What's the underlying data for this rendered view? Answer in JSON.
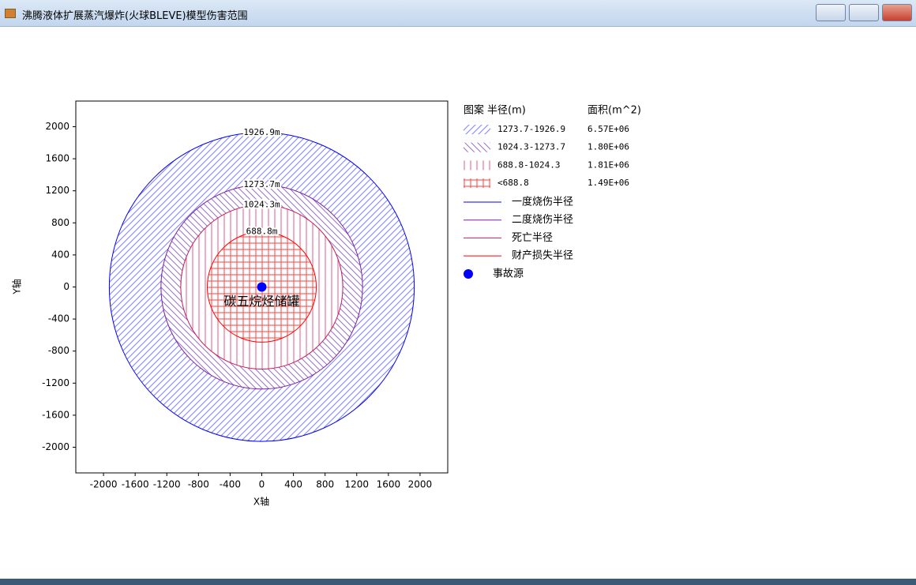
{
  "window": {
    "title": "沸腾液体扩展蒸汽爆炸(火球BLEVE)模型伤害范围"
  },
  "chart_data": {
    "type": "radius",
    "xlabel": "X轴",
    "ylabel": "Y轴",
    "xlim": [
      -2350,
      2350
    ],
    "xticks": [
      -2000,
      -1600,
      -1200,
      -800,
      -400,
      0,
      400,
      800,
      1200,
      1600,
      2000
    ],
    "ylim": [
      -2320,
      2320
    ],
    "yticks": [
      -2000,
      -1600,
      -1200,
      -800,
      -400,
      0,
      400,
      800,
      1200,
      1600,
      2000
    ],
    "series": [
      {
        "name": "一度烧伤半径",
        "color": "#0000ff",
        "values": [
          1926.9
        ],
        "value_labels": [
          "1926.9m"
        ]
      },
      {
        "name": "二度烧伤半径",
        "color": "#7a1fa2",
        "values": [
          1273.7
        ],
        "value_labels": [
          "1273.7m"
        ]
      },
      {
        "name": "死亡半径",
        "color": "#c41e5a",
        "values": [
          1024.3
        ],
        "value_labels": [
          "1024.3m"
        ]
      },
      {
        "name": "财产损失半径",
        "color": "#ff0000",
        "values": [
          688.8
        ],
        "value_labels": [
          "688.8m"
        ]
      }
    ],
    "source": {
      "name": "事故源",
      "label": "碳五烷烃储罐",
      "color": "#0000ff",
      "x": [
        0
      ],
      "y": [
        0
      ]
    },
    "zones": {
      "header": [
        "图案",
        "半径(m)",
        "面积(m^2)"
      ],
      "rows": [
        {
          "range": "1273.7-1926.9",
          "area": "6.57E+06",
          "color": "#8080ff",
          "hatch": "forward"
        },
        {
          "range": "1024.3-1273.7",
          "area": "1.80E+06",
          "color": "#9a70c8",
          "hatch": "backward"
        },
        {
          "range": "688.8-1024.3",
          "area": "1.81E+06",
          "color": "#e05a80",
          "hatch": "vertical"
        },
        {
          "range": "<688.8",
          "area": "1.49E+06",
          "color": "#ff4040",
          "hatch": "cross"
        }
      ]
    }
  }
}
